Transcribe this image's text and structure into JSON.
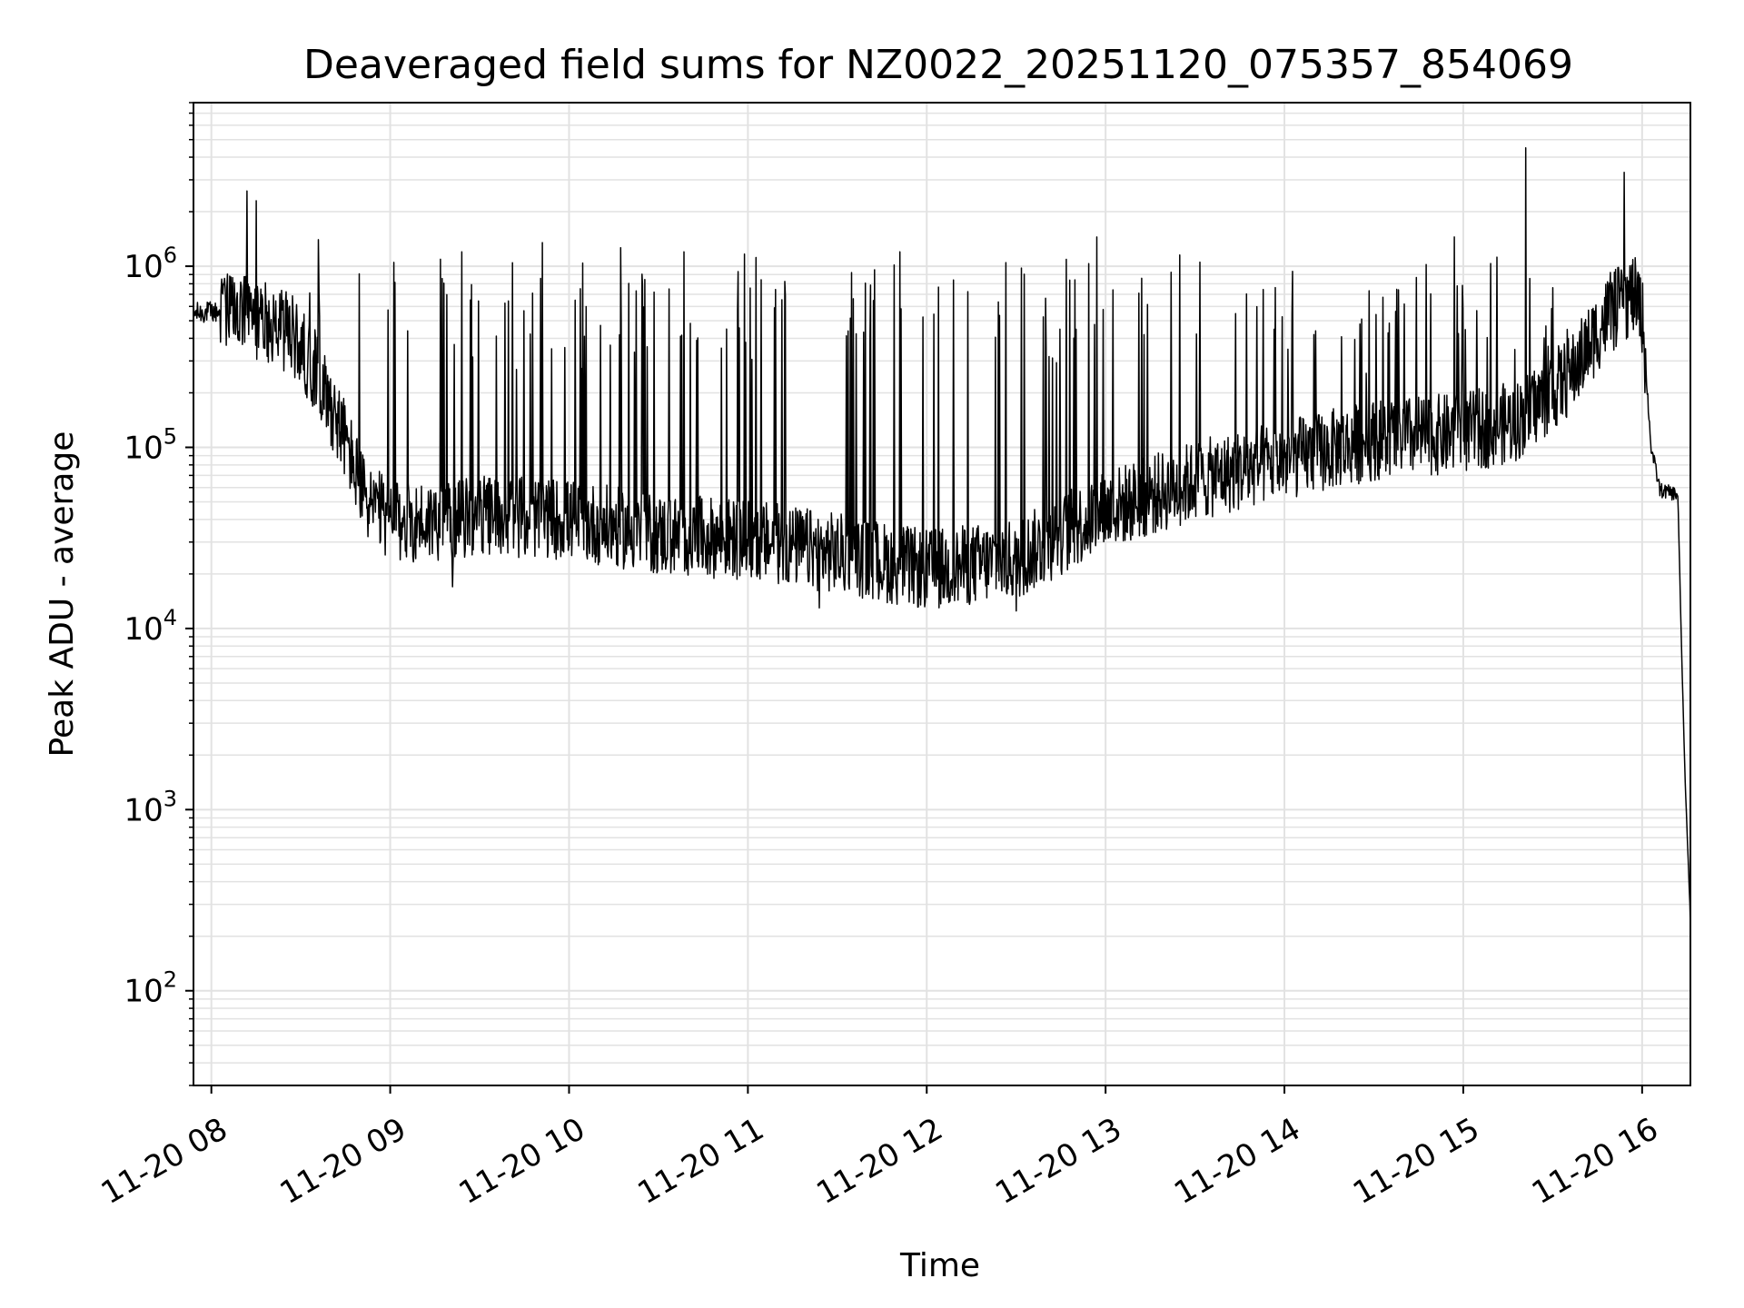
{
  "chart_data": {
    "type": "line",
    "title": "Deaveraged field sums for NZ0022_20251120_075357_854069",
    "xlabel": "Time",
    "ylabel": "Peak ADU - average",
    "yscale": "log",
    "ylim": [
      30,
      8000000
    ],
    "xlim_hours": [
      7.9,
      16.27
    ],
    "grid": true,
    "line_color": "#000000",
    "grid_color": "#e2e2e2",
    "x_ticks": [
      {
        "hour": 8,
        "label": "11-20 08"
      },
      {
        "hour": 9,
        "label": "11-20 09"
      },
      {
        "hour": 10,
        "label": "11-20 10"
      },
      {
        "hour": 11,
        "label": "11-20 11"
      },
      {
        "hour": 12,
        "label": "11-20 12"
      },
      {
        "hour": 13,
        "label": "11-20 13"
      },
      {
        "hour": 14,
        "label": "11-20 14"
      },
      {
        "hour": 15,
        "label": "11-20 15"
      },
      {
        "hour": 16,
        "label": "11-20 16"
      }
    ],
    "y_ticks": [
      {
        "value": 100,
        "base": "10",
        "exp": "2"
      },
      {
        "value": 1000,
        "base": "10",
        "exp": "3"
      },
      {
        "value": 10000,
        "base": "10",
        "exp": "4"
      },
      {
        "value": 100000,
        "base": "10",
        "exp": "5"
      },
      {
        "value": 1000000,
        "base": "10",
        "exp": "6"
      }
    ],
    "series": [
      {
        "name": "Peak ADU - average",
        "baseline": {
          "hours": [
            7.9,
            8.0,
            8.15,
            8.3,
            8.45,
            8.6,
            8.75,
            8.85,
            9.0,
            9.3,
            9.6,
            10.0,
            10.5,
            11.0,
            11.5,
            12.0,
            12.5,
            13.0,
            13.5,
            14.0,
            14.5,
            15.0,
            15.3,
            15.6,
            15.8,
            15.95,
            16.0,
            16.05,
            16.1,
            16.2,
            16.22,
            16.24,
            16.27
          ],
          "values": [
            550000,
            560000,
            540000,
            500000,
            420000,
            250000,
            110000,
            55000,
            38000,
            40000,
            42000,
            40000,
            33000,
            31000,
            26000,
            21000,
            24000,
            45000,
            65000,
            85000,
            110000,
            120000,
            140000,
            250000,
            520000,
            700000,
            550000,
            100000,
            58000,
            55000,
            8000,
            1500,
            250
          ]
        },
        "notable_peaks": [
          {
            "hour": 8.2,
            "value": 2600000
          },
          {
            "hour": 8.25,
            "value": 2300000
          },
          {
            "hour": 8.6,
            "value": 1400000
          },
          {
            "hour": 9.02,
            "value": 1050000
          },
          {
            "hour": 9.4,
            "value": 1200000
          },
          {
            "hour": 9.85,
            "value": 1350000
          },
          {
            "hour": 11.85,
            "value": 1200000
          },
          {
            "hour": 12.95,
            "value": 1450000
          },
          {
            "hour": 14.95,
            "value": 1450000
          },
          {
            "hour": 15.35,
            "value": 4500000
          },
          {
            "hour": 15.9,
            "value": 3300000
          }
        ],
        "notable_minima": [
          {
            "hour": 9.35,
            "value": 17000
          },
          {
            "hour": 11.4,
            "value": 13000
          },
          {
            "hour": 12.5,
            "value": 12500
          },
          {
            "hour": 16.27,
            "value": 220
          }
        ]
      }
    ]
  }
}
